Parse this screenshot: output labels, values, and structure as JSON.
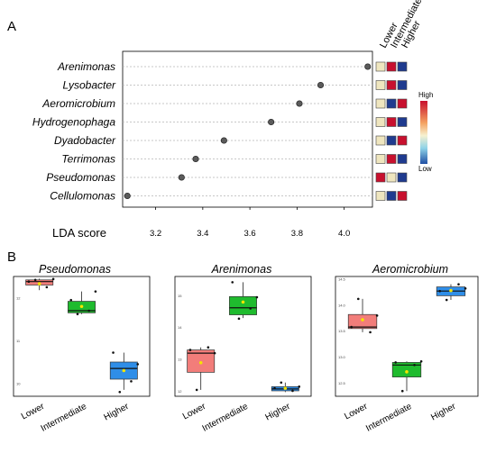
{
  "panels": {
    "a_label": "A",
    "b_label": "B"
  },
  "chart_data": [
    {
      "type": "lda-dotplot",
      "xlabel": "LDA score",
      "xlim": [
        3.06,
        4.12
      ],
      "xticks": [
        "3.2",
        "3.4",
        "3.6",
        "3.8",
        "4.0"
      ],
      "taxa": [
        "Arenimonas",
        "Lysobacter",
        "Aeromicrobium",
        "Hydrogenophaga",
        "Dyadobacter",
        "Terrimonas",
        "Pseudomonas",
        "Cellulomonas"
      ],
      "values": [
        4.1,
        3.9,
        3.81,
        3.69,
        3.49,
        3.37,
        3.31,
        3.08
      ],
      "group_headers": [
        "Lower",
        "Intermediate",
        "Higher"
      ],
      "heat_levels": [
        [
          "mid",
          "high",
          "low"
        ],
        [
          "mid",
          "high",
          "low"
        ],
        [
          "mid",
          "low",
          "high"
        ],
        [
          "mid",
          "high",
          "low"
        ],
        [
          "mid",
          "low",
          "high"
        ],
        [
          "mid",
          "high",
          "low"
        ],
        [
          "high",
          "mid",
          "low"
        ],
        [
          "mid",
          "low",
          "high"
        ]
      ],
      "colors": {
        "high": "#c8102e",
        "mid": "#efe6bf",
        "low": "#1f3b8f",
        "dot": "#5b5b5b"
      },
      "legend": {
        "high_label": "High",
        "low_label": "Low"
      }
    },
    {
      "type": "box",
      "title": "Pseudomonas",
      "categories": [
        "Lower",
        "Intermediate",
        "Higher"
      ],
      "colors": [
        "#f27d7a",
        "#1fbb2e",
        "#2f8ee8"
      ],
      "yticks": [
        "12",
        "11",
        "10"
      ],
      "ylim": [
        9.7,
        12.5
      ],
      "boxes": [
        {
          "min": 12.18,
          "q1": 12.3,
          "median": 12.38,
          "q3": 12.42,
          "max": 12.45,
          "mean": 12.33
        },
        {
          "min": 11.62,
          "q1": 11.65,
          "median": 11.7,
          "q3": 11.92,
          "max": 12.15,
          "mean": 11.8
        },
        {
          "min": 9.85,
          "q1": 10.1,
          "median": 10.35,
          "q3": 10.5,
          "max": 10.72,
          "mean": 10.3
        }
      ],
      "points": [
        [
          12.42,
          12.25,
          12.38,
          12.44
        ],
        [
          11.62,
          11.7,
          11.95,
          12.15
        ],
        [
          9.8,
          10.05,
          10.72,
          10.45
        ]
      ]
    },
    {
      "type": "box",
      "title": "Arenimonas",
      "categories": [
        "Lower",
        "Intermediate",
        "Higher"
      ],
      "colors": [
        "#f27d7a",
        "#1fbb2e",
        "#2f8ee8"
      ],
      "yticks": [
        "15",
        "14",
        "13",
        "12"
      ],
      "ylim": [
        11.85,
        15.6
      ],
      "boxes": [
        {
          "min": 12.05,
          "q1": 12.6,
          "median": 13.2,
          "q3": 13.3,
          "max": 13.38,
          "mean": 12.9
        },
        {
          "min": 14.3,
          "q1": 14.4,
          "median": 14.62,
          "q3": 14.97,
          "max": 15.42,
          "mean": 14.8
        },
        {
          "min": 11.98,
          "q1": 12.02,
          "median": 12.08,
          "q3": 12.15,
          "max": 12.28,
          "mean": 12.1
        }
      ],
      "points": [
        [
          12.05,
          13.38,
          13.3,
          13.2
        ],
        [
          14.28,
          14.6,
          15.42,
          14.95
        ],
        [
          12.28,
          12.02,
          12.1,
          12.15
        ]
      ]
    },
    {
      "type": "box",
      "title": "Aeromicrobium",
      "categories": [
        "Lower",
        "Intermediate",
        "Higher"
      ],
      "colors": [
        "#f27d7a",
        "#1fbb2e",
        "#2f8ee8"
      ],
      "yticks": [
        "14.5",
        "14.0",
        "13.5",
        "13.0",
        "12.5"
      ],
      "ylim": [
        12.25,
        14.55
      ],
      "boxes": [
        {
          "min": 13.48,
          "q1": 13.55,
          "median": 13.58,
          "q3": 13.82,
          "max": 14.12,
          "mean": 13.72
        },
        {
          "min": 12.35,
          "q1": 12.62,
          "median": 12.85,
          "q3": 12.9,
          "max": 12.92,
          "mean": 12.72
        },
        {
          "min": 14.1,
          "q1": 14.18,
          "median": 14.27,
          "q3": 14.35,
          "max": 14.4,
          "mean": 14.28
        }
      ],
      "points": [
        [
          14.12,
          13.48,
          13.58,
          13.8
        ],
        [
          12.35,
          12.85,
          12.9,
          12.92
        ],
        [
          14.1,
          14.4,
          14.27,
          14.32
        ]
      ]
    }
  ]
}
